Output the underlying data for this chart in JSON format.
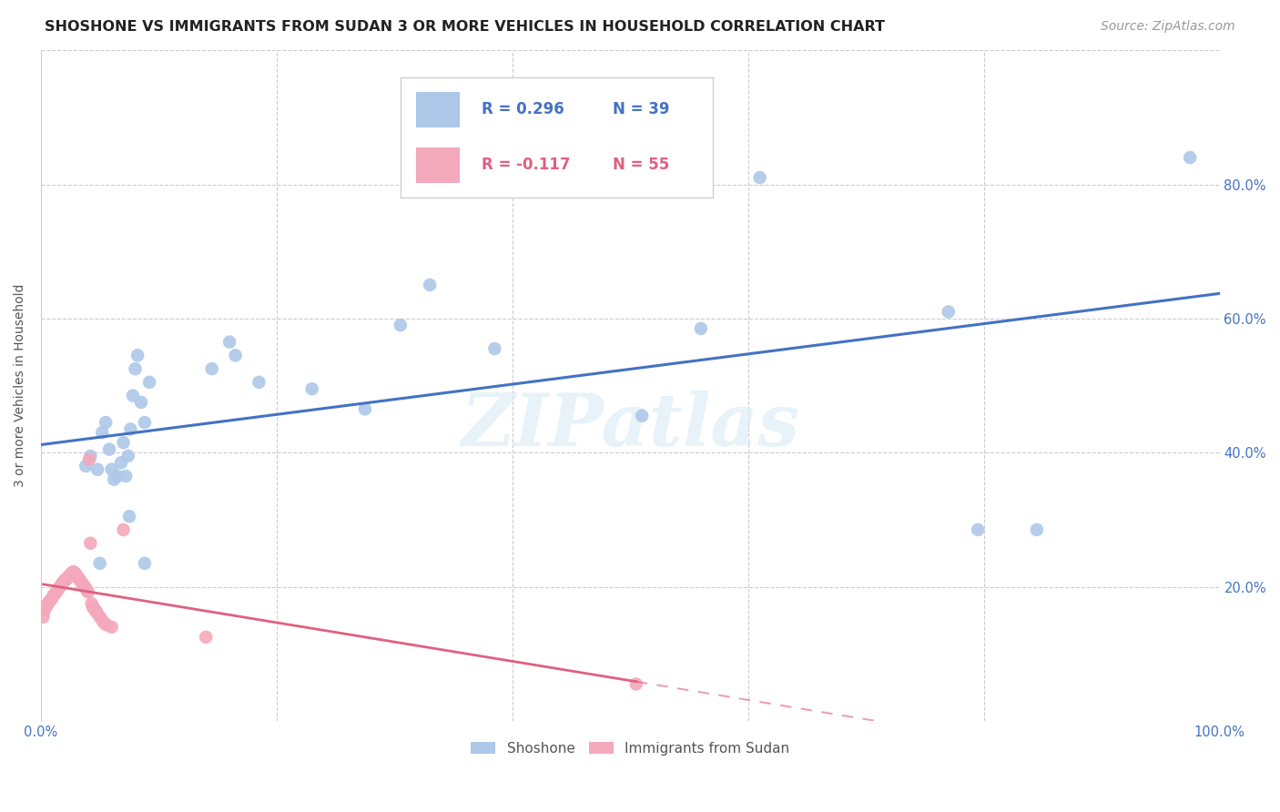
{
  "title": "SHOSHONE VS IMMIGRANTS FROM SUDAN 3 OR MORE VEHICLES IN HOUSEHOLD CORRELATION CHART",
  "source": "Source: ZipAtlas.com",
  "ylabel": "3 or more Vehicles in Household",
  "xlim": [
    0,
    1.0
  ],
  "ylim": [
    0,
    1.0
  ],
  "xtick_positions": [
    0.0,
    0.2,
    0.4,
    0.6,
    0.8,
    1.0
  ],
  "xticklabels": [
    "0.0%",
    "",
    "",
    "",
    "",
    "100.0%"
  ],
  "ytick_positions": [
    0.0,
    0.2,
    0.4,
    0.6,
    0.8,
    1.0
  ],
  "yticklabels_right": [
    "",
    "20.0%",
    "40.0%",
    "60.0%",
    "80.0%",
    ""
  ],
  "blue_R": 0.296,
  "blue_N": 39,
  "pink_R": -0.117,
  "pink_N": 55,
  "blue_color": "#adc8e8",
  "blue_line_color": "#4472c4",
  "pink_color": "#f4a8bc",
  "pink_line_color": "#e06080",
  "watermark": "ZIPatlas",
  "blue_scatter_x": [
    0.038,
    0.042,
    0.048,
    0.052,
    0.055,
    0.058,
    0.06,
    0.062,
    0.065,
    0.068,
    0.07,
    0.072,
    0.074,
    0.076,
    0.078,
    0.08,
    0.082,
    0.085,
    0.088,
    0.092,
    0.05,
    0.075,
    0.088,
    0.145,
    0.16,
    0.165,
    0.185,
    0.23,
    0.275,
    0.305,
    0.33,
    0.385,
    0.51,
    0.56,
    0.61,
    0.77,
    0.795,
    0.845,
    0.975
  ],
  "blue_scatter_y": [
    0.38,
    0.395,
    0.375,
    0.43,
    0.445,
    0.405,
    0.375,
    0.36,
    0.365,
    0.385,
    0.415,
    0.365,
    0.395,
    0.435,
    0.485,
    0.525,
    0.545,
    0.475,
    0.445,
    0.505,
    0.235,
    0.305,
    0.235,
    0.525,
    0.565,
    0.545,
    0.505,
    0.495,
    0.465,
    0.59,
    0.65,
    0.555,
    0.455,
    0.585,
    0.81,
    0.61,
    0.285,
    0.285,
    0.84
  ],
  "pink_scatter_x": [
    0.002,
    0.003,
    0.004,
    0.005,
    0.006,
    0.007,
    0.008,
    0.009,
    0.01,
    0.011,
    0.012,
    0.013,
    0.014,
    0.015,
    0.016,
    0.017,
    0.018,
    0.019,
    0.02,
    0.021,
    0.022,
    0.023,
    0.024,
    0.025,
    0.026,
    0.027,
    0.028,
    0.029,
    0.03,
    0.031,
    0.032,
    0.033,
    0.034,
    0.035,
    0.036,
    0.037,
    0.038,
    0.039,
    0.04,
    0.041,
    0.042,
    0.043,
    0.044,
    0.045,
    0.046,
    0.047,
    0.048,
    0.05,
    0.052,
    0.054,
    0.056,
    0.06,
    0.07,
    0.14,
    0.505
  ],
  "pink_scatter_y": [
    0.155,
    0.165,
    0.17,
    0.172,
    0.175,
    0.178,
    0.18,
    0.182,
    0.185,
    0.188,
    0.19,
    0.192,
    0.195,
    0.197,
    0.2,
    0.202,
    0.205,
    0.207,
    0.21,
    0.21,
    0.212,
    0.215,
    0.215,
    0.218,
    0.22,
    0.222,
    0.222,
    0.22,
    0.218,
    0.215,
    0.213,
    0.21,
    0.208,
    0.205,
    0.203,
    0.2,
    0.198,
    0.195,
    0.192,
    0.39,
    0.265,
    0.175,
    0.17,
    0.168,
    0.165,
    0.163,
    0.16,
    0.155,
    0.15,
    0.145,
    0.143,
    0.14,
    0.285,
    0.125,
    0.055
  ],
  "legend_labels": [
    "Shoshone",
    "Immigrants from Sudan"
  ],
  "title_fontsize": 11.5,
  "label_fontsize": 10,
  "tick_fontsize": 10.5,
  "source_fontsize": 10
}
